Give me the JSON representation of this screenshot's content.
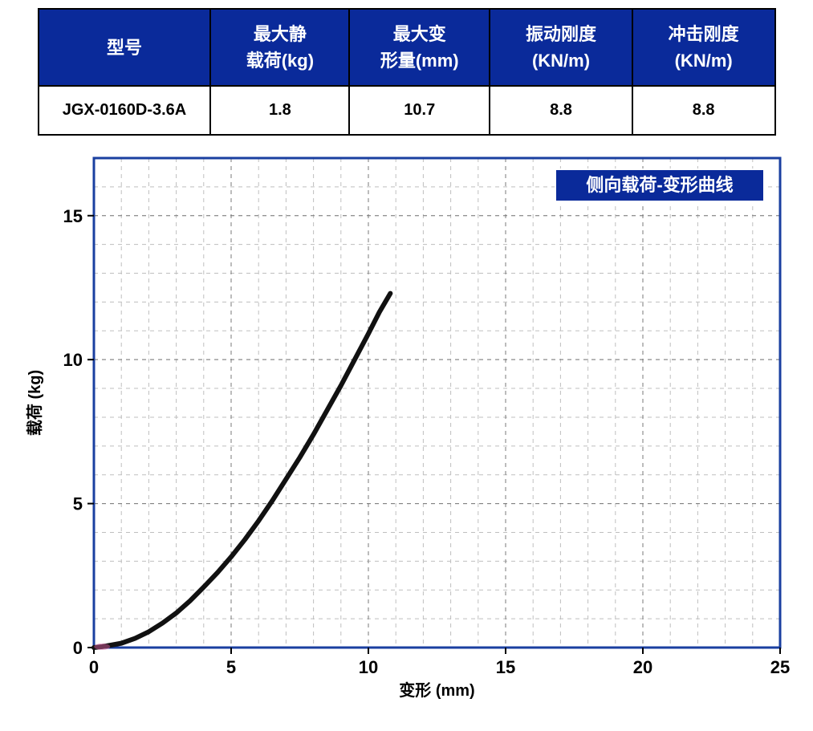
{
  "table": {
    "header_bg": "#0a2a9a",
    "header_fg": "#ffffff",
    "border_color": "#000000",
    "columns": [
      {
        "key": "model",
        "label_line1": "型号",
        "label_line2": ""
      },
      {
        "key": "max_static",
        "label_line1": "最大静",
        "label_line2": "载荷(kg)"
      },
      {
        "key": "max_deform",
        "label_line1": "最大变",
        "label_line2": "形量(mm)"
      },
      {
        "key": "vib_stiff",
        "label_line1": "振动刚度",
        "label_line2": "(KN/m)"
      },
      {
        "key": "imp_stiff",
        "label_line1": "冲击刚度",
        "label_line2": "(KN/m)"
      }
    ],
    "row": {
      "model": "JGX-0160D-3.6A",
      "max_static": "1.8",
      "max_deform": "10.7",
      "vib_stiff": "8.8",
      "imp_stiff": "8.8"
    }
  },
  "chart": {
    "type": "line",
    "title_badge": "侧向载荷-变形曲线",
    "badge_bg": "#0a2a9a",
    "badge_fg": "#ffffff",
    "xlabel": "变形 (mm)",
    "ylabel": "载荷 (kg)",
    "label_fontsize": 20,
    "tick_fontsize": 22,
    "plot_bg": "#ffffff",
    "frame_color": "#1a3fa0",
    "frame_width": 3,
    "major_grid_color": "#7a7a7a",
    "minor_grid_color": "#bfbfbf",
    "grid_dash": "5,5",
    "xlim": [
      0,
      25
    ],
    "ylim": [
      0,
      17
    ],
    "x_major_ticks": [
      0,
      5,
      10,
      15,
      20,
      25
    ],
    "x_minor_step": 1,
    "y_major_ticks": [
      0,
      5,
      10,
      15
    ],
    "y_minor_step": 1,
    "curve_color": "#111111",
    "curve_width": 6,
    "origin_marker_color": "#d65ba0",
    "data": [
      {
        "x": 0.0,
        "y": 0.0
      },
      {
        "x": 0.3,
        "y": 0.03
      },
      {
        "x": 0.6,
        "y": 0.08
      },
      {
        "x": 1.0,
        "y": 0.15
      },
      {
        "x": 1.5,
        "y": 0.32
      },
      {
        "x": 2.0,
        "y": 0.55
      },
      {
        "x": 2.5,
        "y": 0.85
      },
      {
        "x": 3.0,
        "y": 1.2
      },
      {
        "x": 3.5,
        "y": 1.62
      },
      {
        "x": 4.0,
        "y": 2.1
      },
      {
        "x": 4.5,
        "y": 2.6
      },
      {
        "x": 5.0,
        "y": 3.15
      },
      {
        "x": 5.5,
        "y": 3.75
      },
      {
        "x": 6.0,
        "y": 4.4
      },
      {
        "x": 6.5,
        "y": 5.1
      },
      {
        "x": 7.0,
        "y": 5.85
      },
      {
        "x": 7.5,
        "y": 6.6
      },
      {
        "x": 8.0,
        "y": 7.4
      },
      {
        "x": 8.5,
        "y": 8.25
      },
      {
        "x": 9.0,
        "y": 9.1
      },
      {
        "x": 9.5,
        "y": 10.0
      },
      {
        "x": 10.0,
        "y": 10.9
      },
      {
        "x": 10.4,
        "y": 11.65
      },
      {
        "x": 10.8,
        "y": 12.3
      }
    ]
  }
}
